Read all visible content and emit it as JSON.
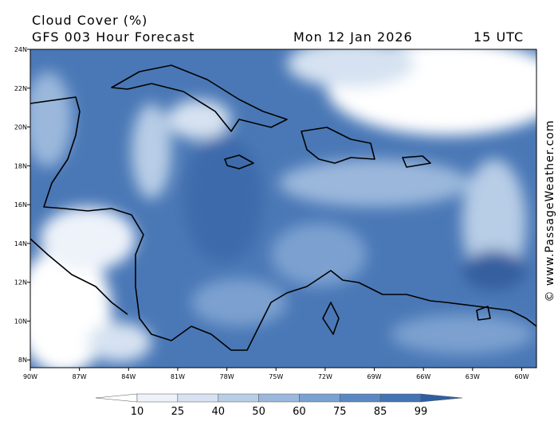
{
  "header": {
    "title": "Cloud Cover (%)",
    "model": "GFS 003 Hour Forecast",
    "date": "Mon 12 Jan 2026",
    "time": "15 UTC"
  },
  "map": {
    "lat_range": [
      7.6,
      24
    ],
    "lon_range": [
      -90,
      -59.1
    ],
    "lat_ticks": [
      {
        "value": 24,
        "label": "24N"
      },
      {
        "value": 22,
        "label": "22N"
      },
      {
        "value": 20,
        "label": "20N"
      },
      {
        "value": 18,
        "label": "18N"
      },
      {
        "value": 16,
        "label": "16N"
      },
      {
        "value": 14,
        "label": "14N"
      },
      {
        "value": 12,
        "label": "12N"
      },
      {
        "value": 10,
        "label": "10N"
      },
      {
        "value": 8,
        "label": "8N"
      }
    ],
    "lon_ticks": [
      {
        "value": -90,
        "label": "90W"
      },
      {
        "value": -87,
        "label": "87W"
      },
      {
        "value": -84,
        "label": "84W"
      },
      {
        "value": -81,
        "label": "81W"
      },
      {
        "value": -78,
        "label": "78W"
      },
      {
        "value": -75,
        "label": "75W"
      },
      {
        "value": -72,
        "label": "72W"
      },
      {
        "value": -69,
        "label": "69W"
      },
      {
        "value": -66,
        "label": "66W"
      },
      {
        "value": -63,
        "label": "63W"
      },
      {
        "value": -60,
        "label": "60W"
      }
    ],
    "watermark": "© www.PassageWeather.com"
  },
  "colorbar": {
    "levels": [
      10,
      25,
      40,
      50,
      60,
      75,
      85,
      99
    ],
    "colors": [
      "#ffffff",
      "#eef3fa",
      "#d6e2f1",
      "#b8cde6",
      "#9bb8dc",
      "#7ba1d0",
      "#5b88c2",
      "#4474b4",
      "#2f5fa3"
    ]
  }
}
